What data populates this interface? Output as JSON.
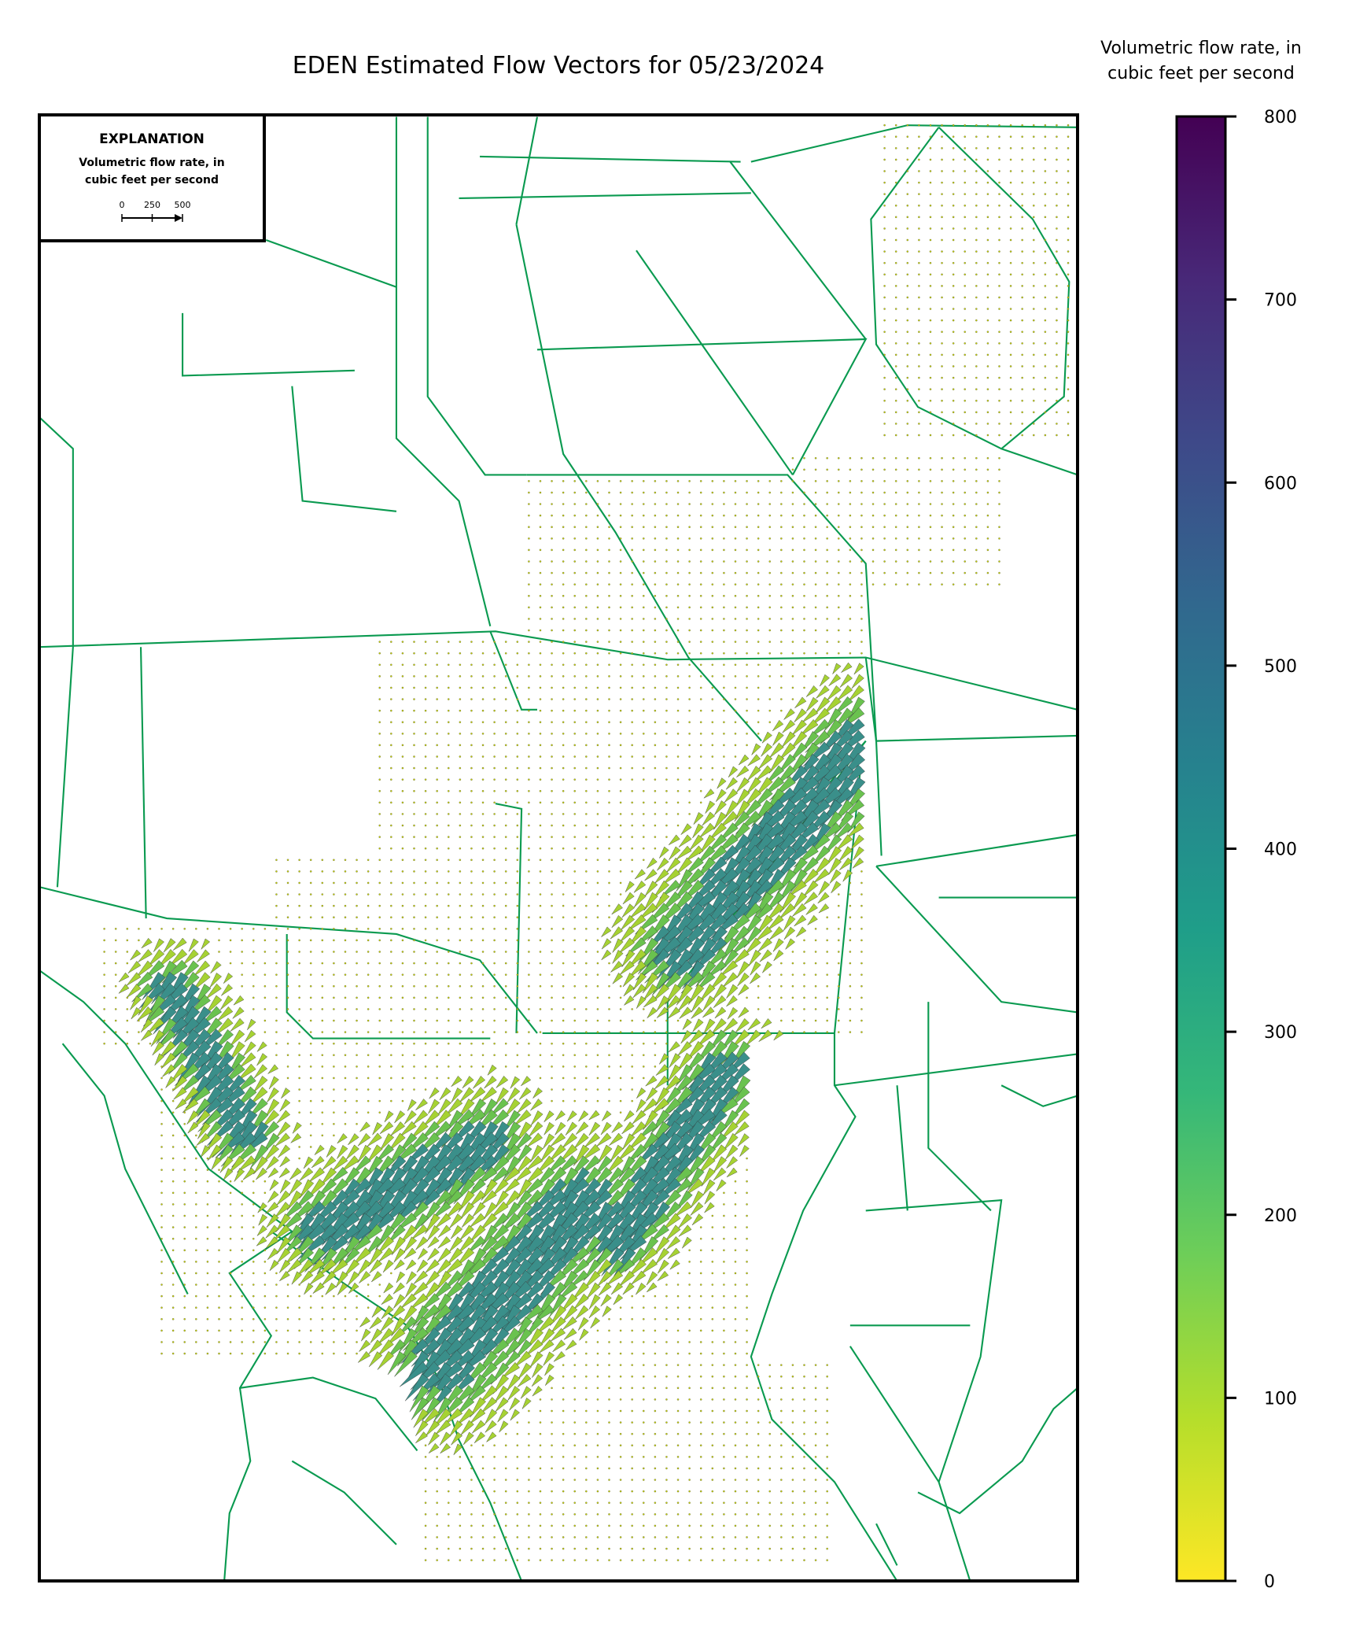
{
  "title": "EDEN Estimated Flow Vectors for 05/23/2024",
  "explanation": {
    "heading": "EXPLANATION",
    "label_lines": [
      "Volumetric flow rate, in",
      "cubic feet per second"
    ],
    "scale_ticks": [
      0,
      250,
      500
    ],
    "scale_lim": [
      0,
      500
    ]
  },
  "colorbar": {
    "label_lines": [
      "Volumetric flow rate, in",
      "cubic feet per second"
    ],
    "lim": [
      0,
      800
    ],
    "ticks": [
      0,
      100,
      200,
      300,
      400,
      500,
      600,
      700,
      800
    ],
    "colormap": [
      "#fde725",
      "#b5de2b",
      "#6ece58",
      "#35b779",
      "#1f9e89",
      "#26828e",
      "#31688e",
      "#3e4989",
      "#482878",
      "#440154"
    ]
  }
}
